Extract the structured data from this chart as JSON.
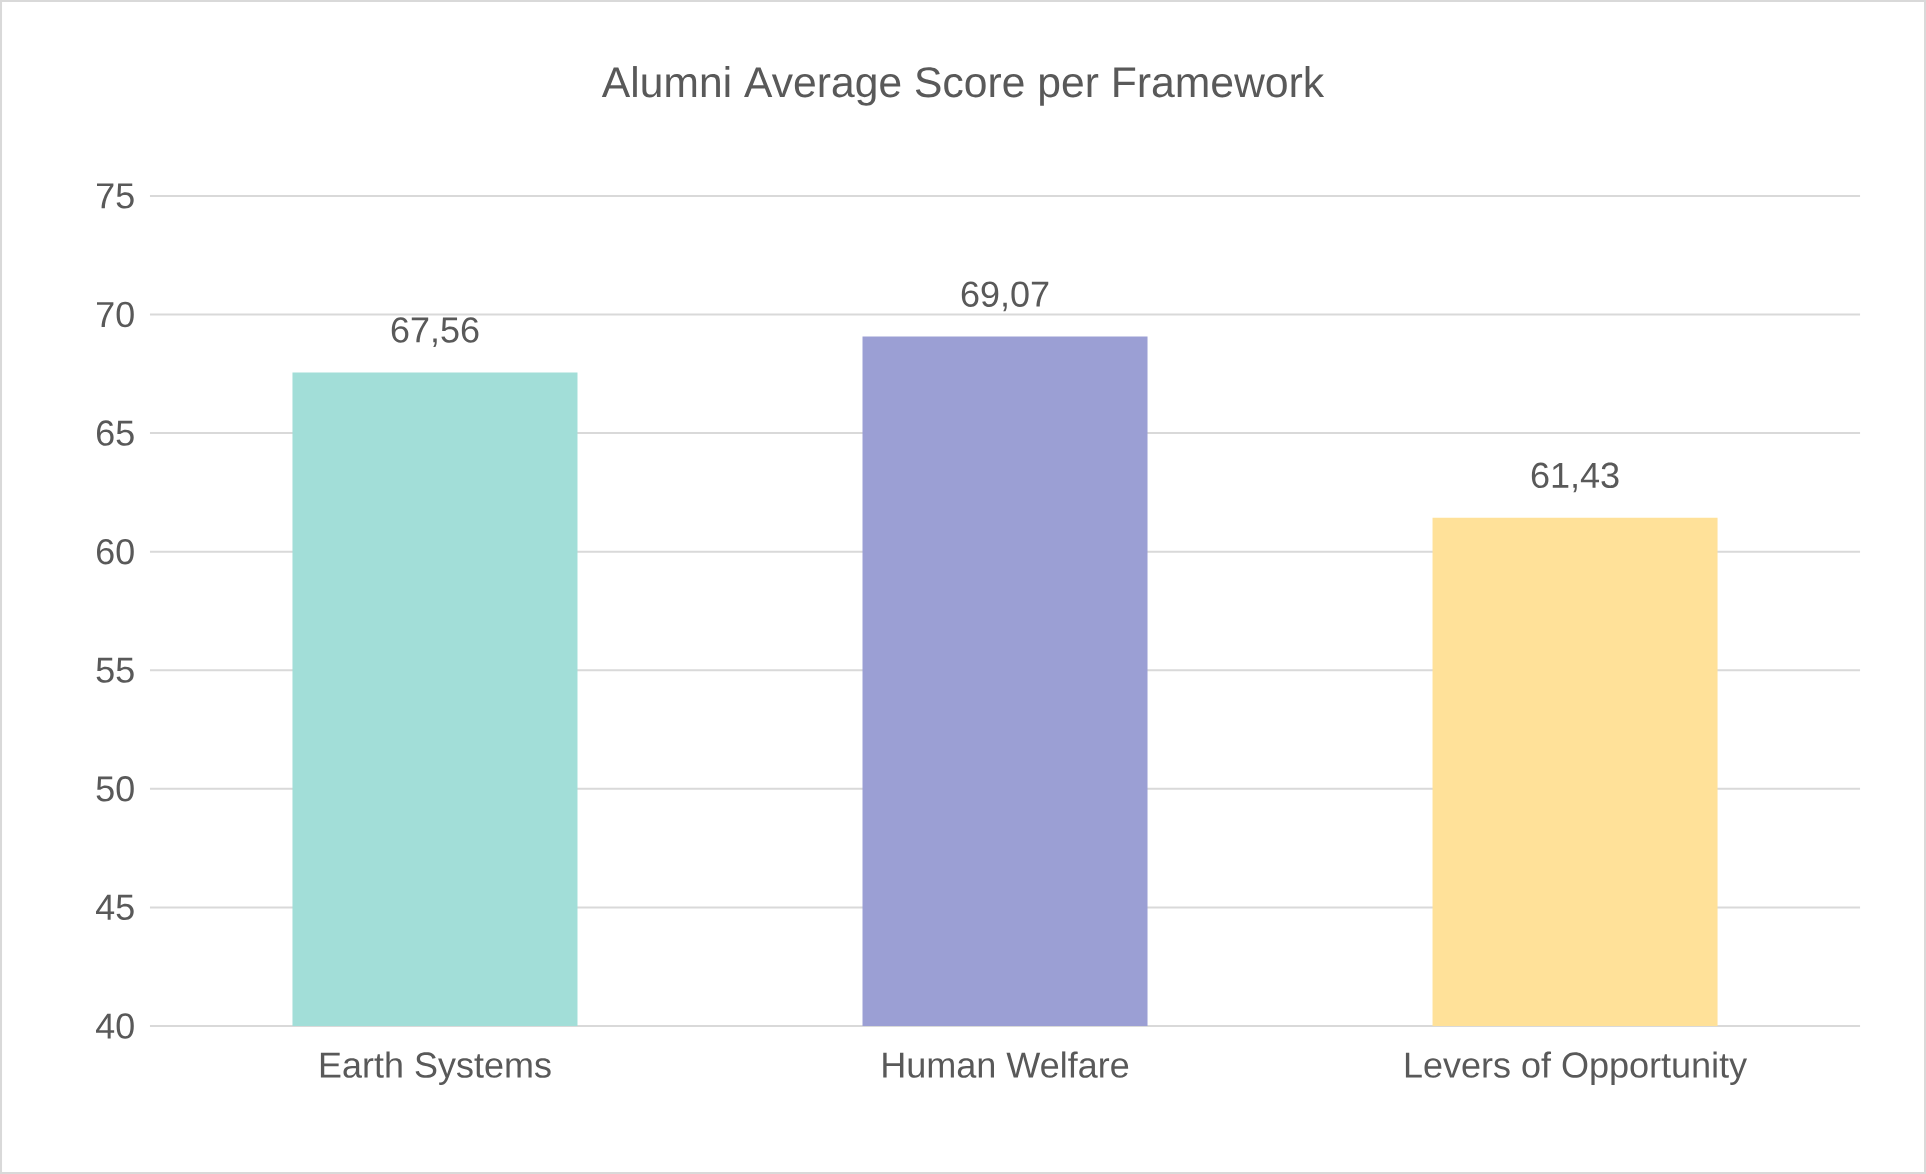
{
  "chart_data": {
    "type": "bar",
    "title": "Alumni Average Score per Framework",
    "categories": [
      "Earth Systems",
      "Human Welfare",
      "Levers of Opportunity"
    ],
    "values": [
      67.56,
      69.07,
      61.43
    ],
    "value_labels": [
      "67,56",
      "69,07",
      "61,43"
    ],
    "colors": [
      "#a2ded8",
      "#9b9fd4",
      "#ffe199"
    ],
    "ylim": [
      40,
      75
    ],
    "yticks": [
      40,
      45,
      50,
      55,
      60,
      65,
      70,
      75
    ],
    "grid": "y"
  }
}
